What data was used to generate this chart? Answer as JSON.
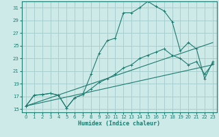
{
  "bg_color": "#ceeae8",
  "grid_color": "#a8cece",
  "line_color": "#1a7a6e",
  "xlabel": "Humidex (Indice chaleur)",
  "xlim": [
    -0.5,
    23.5
  ],
  "ylim": [
    14.5,
    32.0
  ],
  "xticks": [
    0,
    1,
    2,
    3,
    4,
    5,
    6,
    7,
    8,
    9,
    10,
    11,
    12,
    13,
    14,
    15,
    16,
    17,
    18,
    19,
    20,
    21,
    22,
    23
  ],
  "yticks": [
    15,
    17,
    19,
    21,
    23,
    25,
    27,
    29,
    31
  ],
  "series1_x": [
    0,
    1,
    2,
    3,
    4,
    5,
    6,
    7,
    8,
    9,
    10,
    11,
    12,
    13,
    14,
    15,
    16,
    17,
    18,
    19,
    20,
    21,
    22,
    23
  ],
  "series1_y": [
    15.5,
    17.2,
    17.3,
    17.5,
    17.2,
    15.2,
    16.8,
    17.3,
    20.5,
    23.8,
    25.8,
    26.2,
    30.2,
    30.2,
    31.0,
    32.0,
    31.2,
    30.5,
    28.8,
    24.2,
    25.5,
    24.5,
    19.8,
    22.5
  ],
  "series2_x": [
    0,
    1,
    2,
    3,
    4,
    5,
    6,
    7,
    8,
    9,
    10,
    11,
    12,
    13,
    14,
    15,
    16,
    17,
    18,
    19,
    20,
    21,
    22,
    23
  ],
  "series2_y": [
    15.5,
    17.2,
    17.3,
    17.5,
    17.2,
    15.2,
    16.8,
    17.3,
    18.2,
    19.2,
    19.8,
    20.5,
    21.5,
    22.0,
    23.0,
    23.5,
    24.0,
    24.5,
    23.5,
    23.0,
    22.0,
    22.5,
    20.5,
    22.2
  ],
  "series3_x": [
    0,
    23
  ],
  "series3_y": [
    15.5,
    25.5
  ],
  "series4_x": [
    0,
    23
  ],
  "series4_y": [
    15.5,
    22.0
  ]
}
